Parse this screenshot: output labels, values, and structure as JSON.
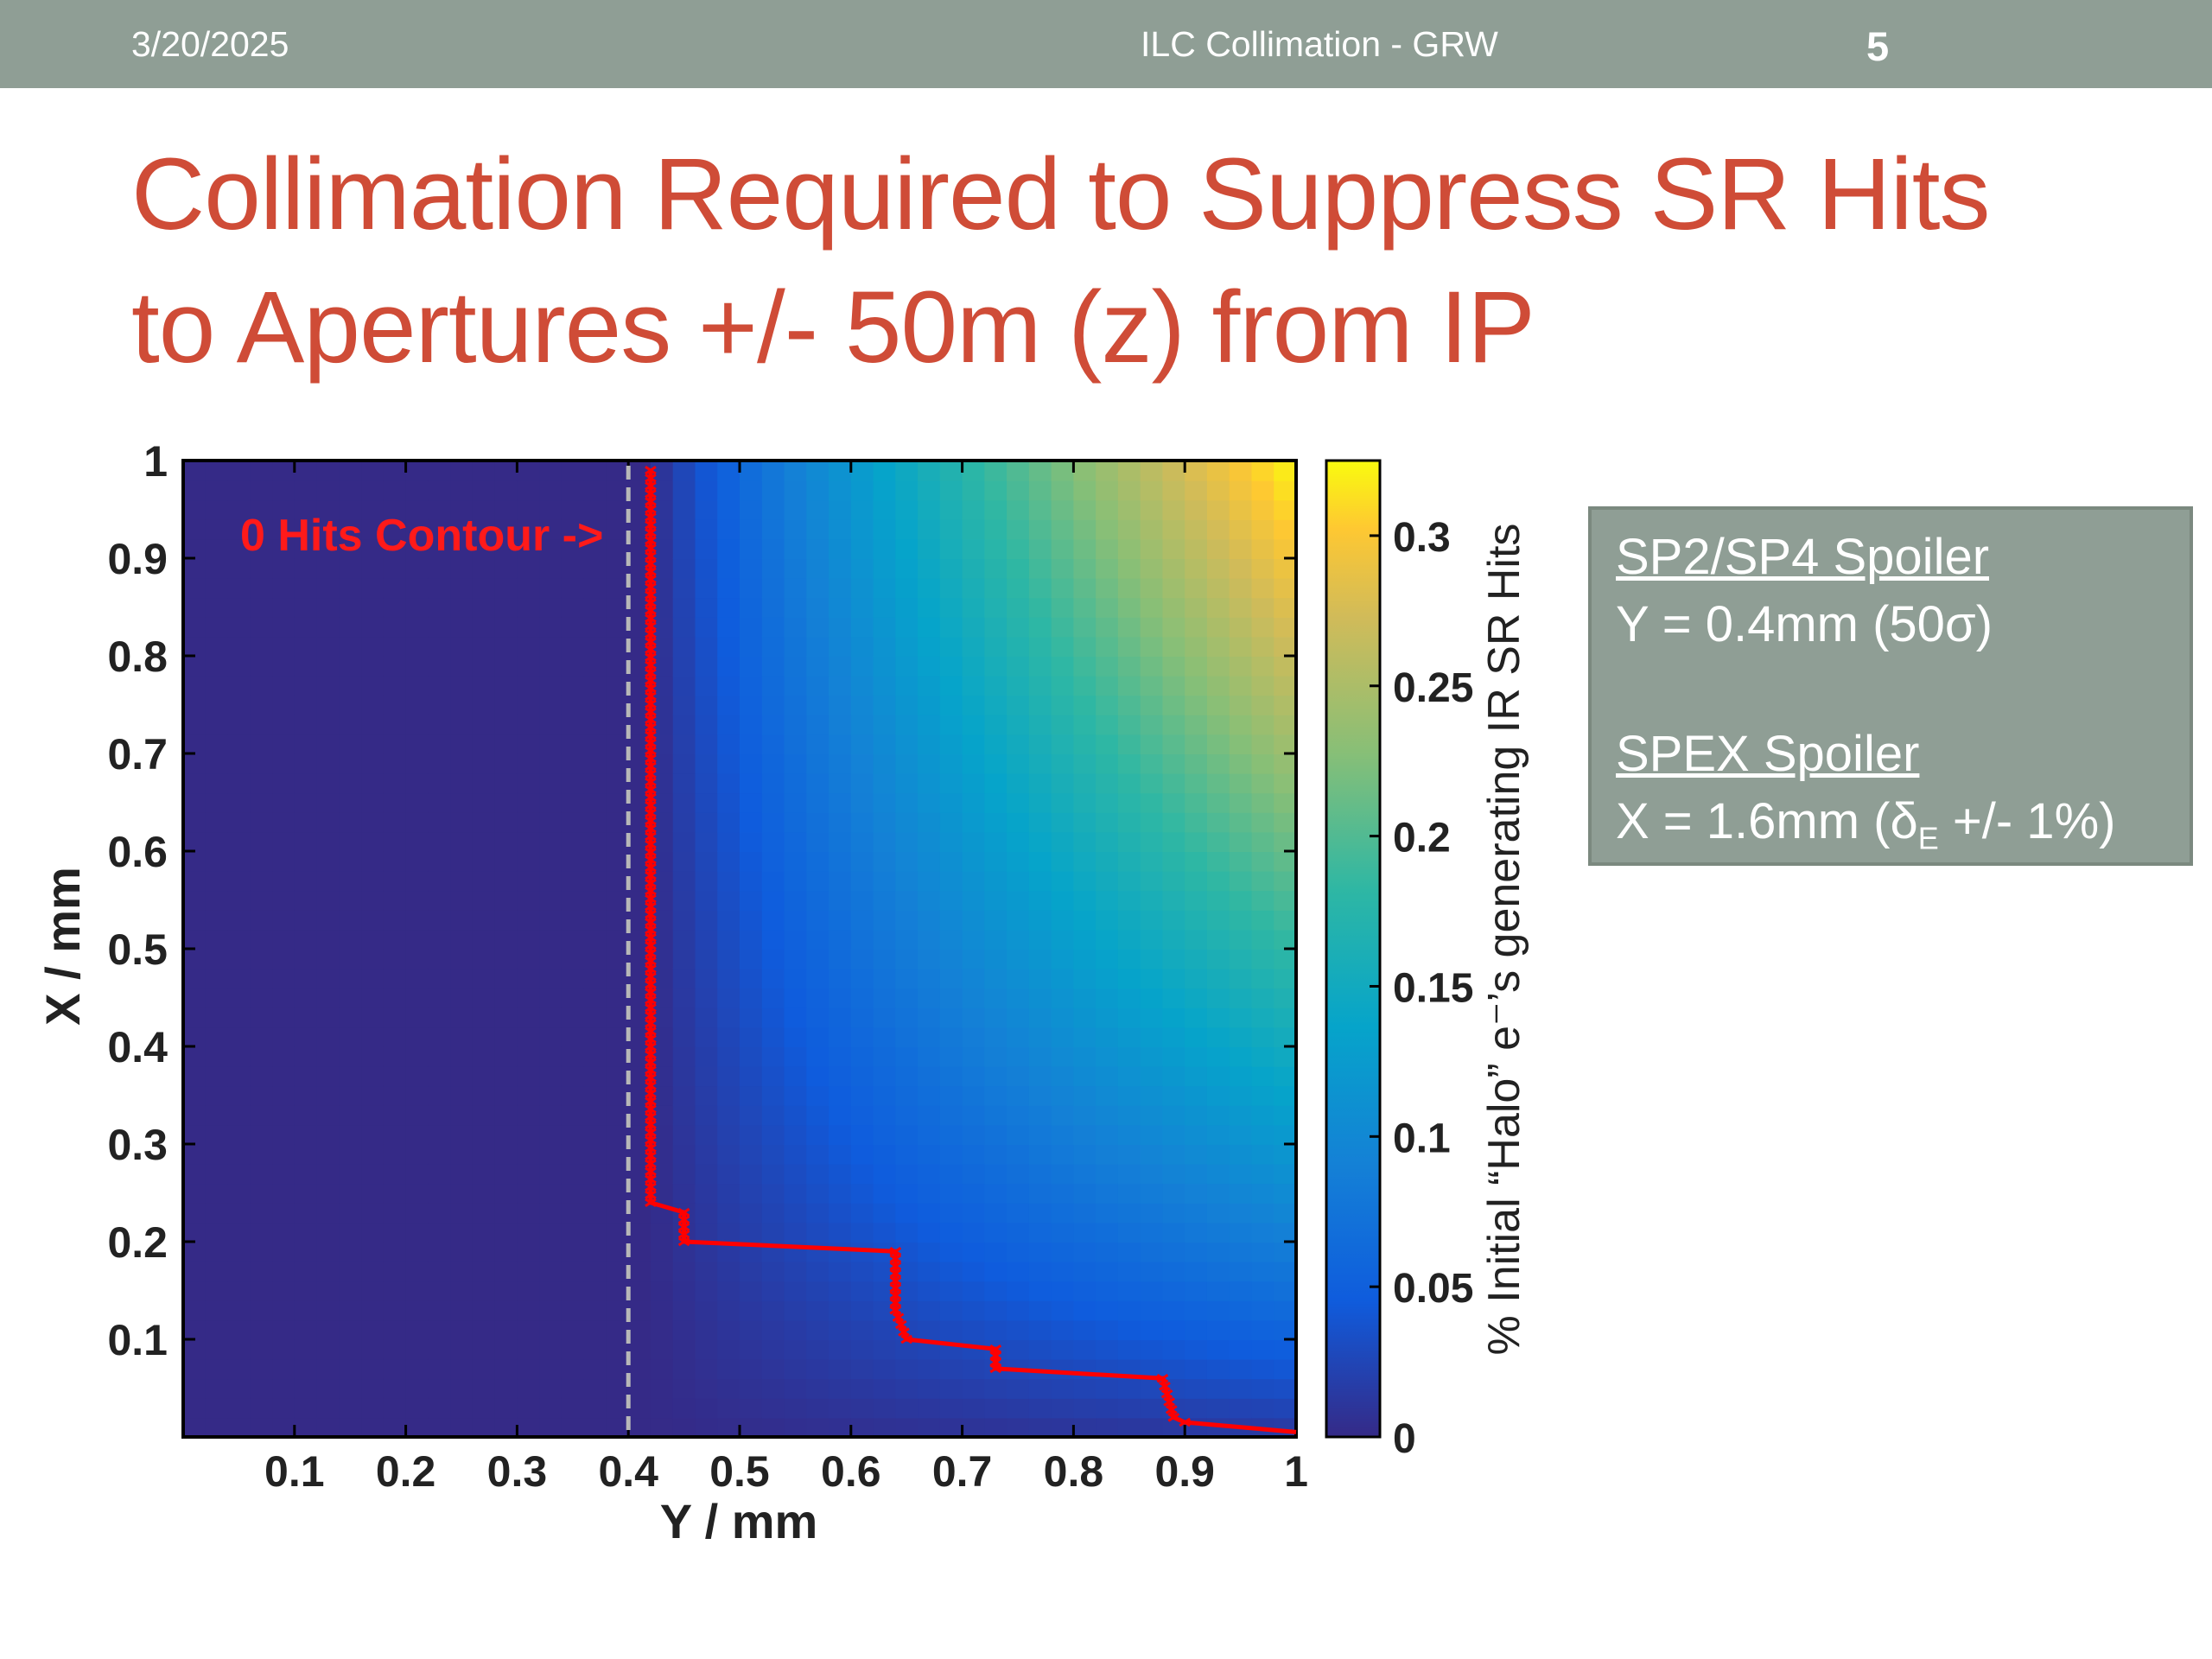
{
  "header": {
    "date": "3/20/2025",
    "footer": "ILC Collimation - GRW",
    "page_number": "5"
  },
  "slide": {
    "title_line1": "Collimation Required to Suppress SR Hits",
    "title_line2": "to Apertures +/- 50m (z) from IP"
  },
  "infobox": {
    "spoiler1_title": "SP2/SP4 Spoiler",
    "spoiler1_value": "Y = 0.4mm (50σ)",
    "spoiler2_title": "SPEX Spoiler",
    "spoiler2_prefix": "X = 1.6mm (δ",
    "spoiler2_sub": "E",
    "spoiler2_suffix": " +/- 1%)"
  },
  "colors": {
    "title": "#cf4c37",
    "header_bg": "#8f9e95",
    "contour": "#ff0000"
  },
  "chart_data": {
    "type": "heatmap",
    "xlabel": "Y / mm",
    "ylabel": "X / mm",
    "colorbar_label": "% Initial “Halo” e⁻’s generating IR SR Hits",
    "xlim": [
      0,
      1
    ],
    "ylim": [
      0,
      1
    ],
    "clim": [
      0,
      0.325
    ],
    "x_ticks": [
      "0.1",
      "0.2",
      "0.3",
      "0.4",
      "0.5",
      "0.6",
      "0.7",
      "0.8",
      "0.9",
      "1"
    ],
    "y_ticks": [
      "0.1",
      "0.2",
      "0.3",
      "0.4",
      "0.5",
      "0.6",
      "0.7",
      "0.8",
      "0.9",
      "1"
    ],
    "colorbar_ticks": [
      "0",
      "0.05",
      "0.1",
      "0.15",
      "0.2",
      "0.25",
      "0.3"
    ],
    "colormap": "parula",
    "annotation": "0 Hits Contour ->",
    "spoiler_line_y": 0.4,
    "zero_hits_contour": [
      [
        0.42,
        0.99
      ],
      [
        0.42,
        0.24
      ],
      [
        0.45,
        0.23
      ],
      [
        0.45,
        0.2
      ],
      [
        0.64,
        0.19
      ],
      [
        0.64,
        0.13
      ],
      [
        0.65,
        0.1
      ],
      [
        0.73,
        0.09
      ],
      [
        0.73,
        0.07
      ],
      [
        0.88,
        0.06
      ],
      [
        0.89,
        0.02
      ],
      [
        0.9,
        0.015
      ],
      [
        1.0,
        0.005
      ]
    ],
    "intensity_model": "approx. 0.325 × (((y−0.42)/0.58)·((x+0.02)/1.0))^0.85 for y>0.42; 0 otherwise"
  }
}
